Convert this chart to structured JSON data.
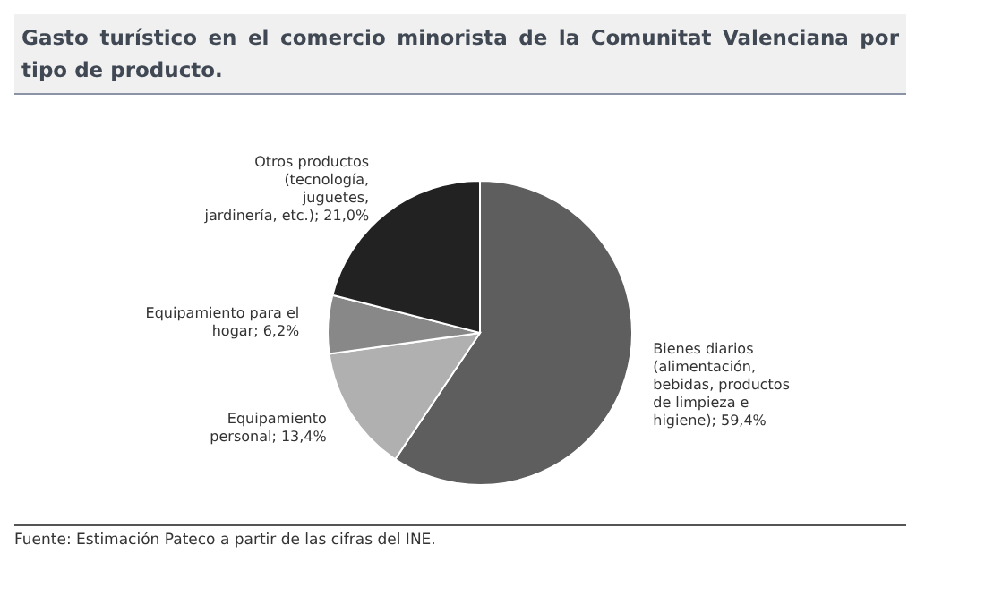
{
  "chart_data": {
    "type": "pie",
    "title": "Gasto turístico en el comercio minorista de la Comunitat Valenciana por tipo de producto.",
    "categories": [
      "Bienes diarios (alimentación, bebidas, productos de limpieza e higiene)",
      "Equipamiento personal",
      "Equipamiento para el hogar",
      "Otros productos (tecnología, juguetes, jardinería, etc.)"
    ],
    "values": [
      59.4,
      13.4,
      6.2,
      21.0
    ],
    "value_labels": [
      "59,4%",
      "13,4%",
      "6,2%",
      "21,0%"
    ],
    "colors": [
      "#5e5e5e",
      "#b0b0b0",
      "#888888",
      "#222222"
    ],
    "annotations": [
      "Fuente: Estimación Pateco a partir de las cifras del INE."
    ]
  }
}
